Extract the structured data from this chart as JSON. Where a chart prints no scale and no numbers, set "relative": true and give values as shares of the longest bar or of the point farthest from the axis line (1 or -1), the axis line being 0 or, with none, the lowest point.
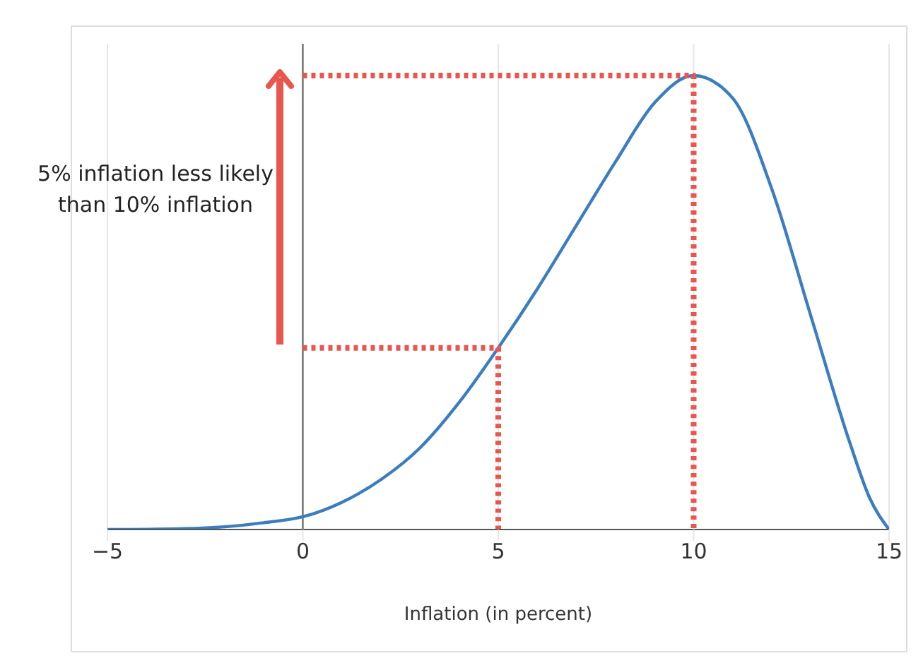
{
  "chart_data": {
    "type": "line",
    "xlabel": "Inflation (in percent)",
    "annotations": [
      "5% inflation less likely than 10% inflation"
    ],
    "relative": true,
    "xlim": [
      -5,
      15
    ],
    "xticks": [
      -5,
      0,
      5,
      10,
      15
    ],
    "grid": "x",
    "ref_lines": [
      {
        "axis": "x",
        "value": 0,
        "color": "#555555"
      }
    ],
    "x": [
      -5,
      -3,
      -2,
      -1,
      0,
      1,
      2,
      3,
      4,
      5,
      6,
      7,
      8,
      9,
      10,
      11,
      12,
      13,
      14,
      14.5,
      15
    ],
    "series": [
      {
        "color": "#3b7dc0",
        "values": [
          0,
          0.002,
          0.006,
          0.015,
          0.028,
          0.06,
          0.11,
          0.18,
          0.28,
          0.4,
          0.53,
          0.67,
          0.81,
          0.94,
          1,
          0.95,
          0.75,
          0.47,
          0.19,
          0.07,
          0
        ]
      },
      {
        "type": "line",
        "color": "#e8564f",
        "line_style": "dotted",
        "x": [
          0,
          5,
          5
        ],
        "values": [
          0.4,
          0.4,
          0
        ]
      },
      {
        "type": "line",
        "color": "#e8564f",
        "line_style": "dotted",
        "x": [
          0,
          10,
          10
        ],
        "values": [
          1,
          1,
          0
        ]
      }
    ]
  }
}
